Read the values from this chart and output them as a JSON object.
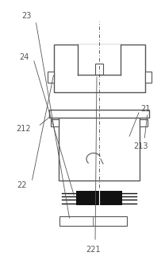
{
  "bg_color": "#ffffff",
  "line_color": "#555555",
  "dark_color": "#111111",
  "label_color": "#555555",
  "fig_width": 2.08,
  "fig_height": 3.32,
  "dpi": 100
}
